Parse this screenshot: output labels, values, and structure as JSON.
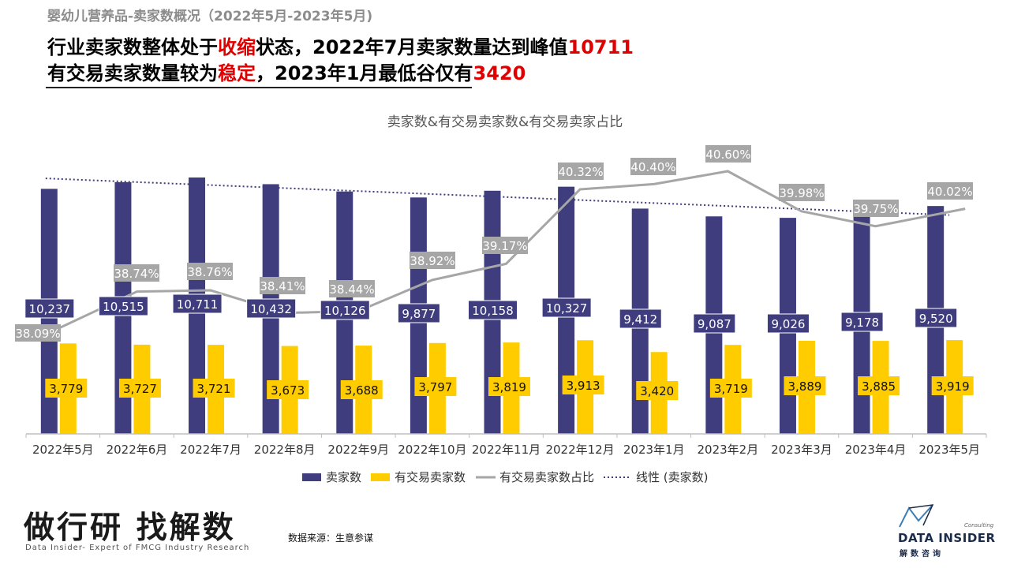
{
  "header": {
    "subtitle": "婴幼儿营养品-卖家数概况（2022年5月-2023年5月)",
    "line1_a": "行业卖家数整体处于",
    "line1_b": "收缩",
    "line1_c": "状态，2022年7月卖家数量达到峰值",
    "line1_d": "10711",
    "line2_a": "有交易卖家数量较为",
    "line2_b": "稳定",
    "line2_c": "，2023年1月最低谷仅有",
    "line2_d": "3420"
  },
  "chart_data": {
    "type": "bar",
    "title": "卖家数&有交易卖家数&有交易卖家占比",
    "categories": [
      "2022年5月",
      "2022年6月",
      "2022年7月",
      "2022年8月",
      "2022年9月",
      "2022年10月",
      "2022年11月",
      "2022年12月",
      "2023年1月",
      "2023年2月",
      "2023年3月",
      "2023年4月",
      "2023年5月"
    ],
    "series": [
      {
        "name": "卖家数",
        "kind": "bar",
        "color": "#3f3d7e",
        "values": [
          10237,
          10515,
          10711,
          10432,
          10126,
          9877,
          10158,
          10327,
          9412,
          9087,
          9026,
          9178,
          9520
        ],
        "labels": [
          "10,237",
          "10,515",
          "10,711",
          "10,432",
          "10,126",
          "9,877",
          "10,158",
          "10,327",
          "9,412",
          "9,087",
          "9,026",
          "9,178",
          "9,520"
        ]
      },
      {
        "name": "有交易卖家数",
        "kind": "bar",
        "color": "#ffcc00",
        "values": [
          3779,
          3727,
          3721,
          3673,
          3688,
          3797,
          3819,
          3913,
          3420,
          3719,
          3889,
          3885,
          3919
        ],
        "labels": [
          "3,779",
          "3,727",
          "3,721",
          "3,673",
          "3,688",
          "3,797",
          "3,819",
          "3,913",
          "3,420",
          "3,719",
          "3,889",
          "3,885",
          "3,919"
        ]
      },
      {
        "name": "有交易卖家数占比",
        "kind": "line",
        "color": "#a6a6a6",
        "values": [
          38.09,
          38.74,
          38.76,
          38.41,
          38.44,
          38.92,
          39.17,
          40.32,
          40.4,
          40.6,
          39.98,
          39.75,
          40.02
        ],
        "labels": [
          "38.09%",
          "38.74%",
          "38.76%",
          "38.41%",
          "38.44%",
          "38.92%",
          "39.17%",
          "40.32%",
          "40.40%",
          "40.60%",
          "39.98%",
          "39.75%",
          "40.02%"
        ]
      },
      {
        "name": "线性 (卖家数)",
        "kind": "trendline",
        "color": "#3f3d7e"
      }
    ],
    "ylim": [
      0,
      11000
    ],
    "legend": "bottom",
    "grid": false
  },
  "footer": {
    "slogan": "做行研 找解数",
    "slogan_sub": "Data Insider- Expert of FMCG Industry Research",
    "source": "数据来源：生意参谋",
    "logo_name": "DATA INSIDER",
    "logo_consulting": "Consulting",
    "logo_cn": "解数咨询"
  }
}
